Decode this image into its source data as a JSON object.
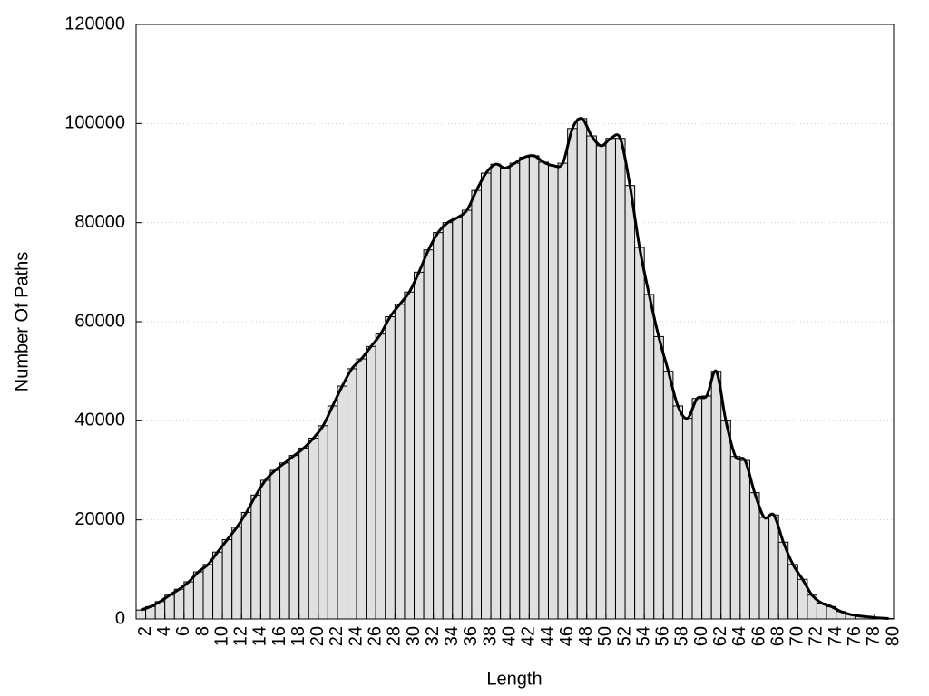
{
  "chart_data": {
    "type": "bar",
    "xlabel": "Length",
    "ylabel": "Number Of Paths",
    "x": [
      2,
      3,
      4,
      5,
      6,
      7,
      8,
      9,
      10,
      11,
      12,
      13,
      14,
      15,
      16,
      17,
      18,
      19,
      20,
      21,
      22,
      23,
      24,
      25,
      26,
      27,
      28,
      29,
      30,
      31,
      32,
      33,
      34,
      35,
      36,
      37,
      38,
      39,
      40,
      41,
      42,
      43,
      44,
      45,
      46,
      47,
      48,
      49,
      50,
      51,
      52,
      53,
      54,
      55,
      56,
      57,
      58,
      59,
      60,
      61,
      62,
      63,
      64,
      65,
      66,
      67,
      68,
      69,
      70,
      71,
      72,
      73,
      74,
      75,
      76,
      77,
      78,
      79,
      80
    ],
    "values": [
      1800,
      2500,
      3500,
      4800,
      6000,
      7500,
      9500,
      11000,
      13500,
      16000,
      18500,
      21500,
      25000,
      28000,
      30000,
      31500,
      33000,
      34500,
      36500,
      39000,
      43000,
      47000,
      50500,
      52500,
      55000,
      57500,
      61000,
      63500,
      66000,
      70000,
      74500,
      78000,
      80000,
      81000,
      82500,
      86500,
      90000,
      91800,
      91000,
      92000,
      93200,
      93500,
      92200,
      91500,
      92000,
      99000,
      101000,
      97500,
      95500,
      97000,
      97000,
      87500,
      75000,
      65500,
      57000,
      50000,
      43000,
      40500,
      44500,
      45000,
      50000,
      40000,
      32800,
      32000,
      25500,
      20500,
      21000,
      15500,
      11000,
      8000,
      4800,
      3200,
      2500,
      1500,
      900,
      600,
      400,
      200,
      100
    ],
    "color": "#e0e0e0",
    "line_color": "#000000",
    "xlim": [
      1,
      80
    ],
    "ylim": [
      0,
      120000
    ],
    "xticks": [
      2,
      4,
      6,
      8,
      10,
      12,
      14,
      16,
      18,
      20,
      22,
      24,
      26,
      28,
      30,
      32,
      34,
      36,
      38,
      40,
      42,
      44,
      46,
      48,
      50,
      52,
      54,
      56,
      58,
      60,
      62,
      64,
      66,
      68,
      70,
      72,
      74,
      76,
      78,
      80
    ],
    "yticks": [
      0,
      20000,
      40000,
      60000,
      80000,
      100000,
      120000
    ],
    "grid": true
  }
}
